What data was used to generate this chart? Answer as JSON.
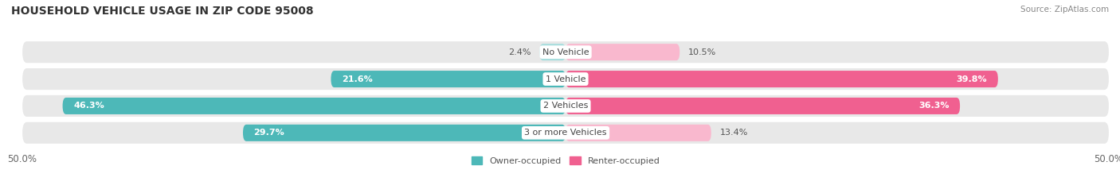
{
  "title": "HOUSEHOLD VEHICLE USAGE IN ZIP CODE 95008",
  "source": "Source: ZipAtlas.com",
  "categories": [
    "No Vehicle",
    "1 Vehicle",
    "2 Vehicles",
    "3 or more Vehicles"
  ],
  "owner_values": [
    2.4,
    21.6,
    46.3,
    29.7
  ],
  "renter_values": [
    10.5,
    39.8,
    36.3,
    13.4
  ],
  "owner_color_strong": "#4db8b8",
  "owner_color_light": "#a8dede",
  "renter_color_strong": "#f06090",
  "renter_color_light": "#f9b8ce",
  "owner_label": "Owner-occupied",
  "renter_label": "Renter-occupied",
  "xlim": [
    -50,
    50
  ],
  "xticklabels": [
    "50.0%",
    "50.0%"
  ],
  "background_color": "#ffffff",
  "bar_bg_color": "#e8e8e8",
  "title_fontsize": 10,
  "source_fontsize": 7.5,
  "label_fontsize": 8,
  "value_fontsize": 8,
  "tick_fontsize": 8.5,
  "legend_fontsize": 8,
  "strong_threshold": 20
}
